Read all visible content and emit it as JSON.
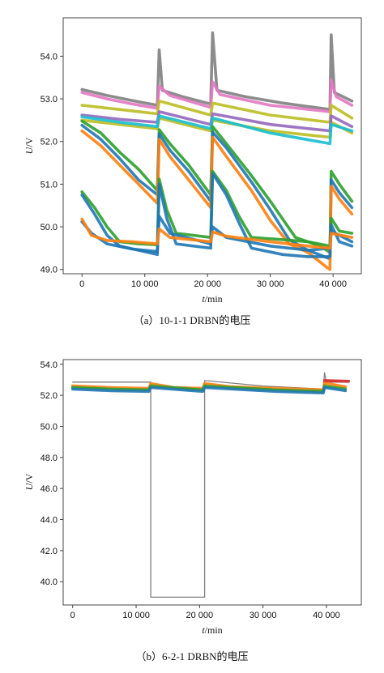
{
  "chart_data": [
    {
      "type": "line",
      "caption": "（a）10-1-1 DRBN的电压",
      "xlabel_italic": "t",
      "xlabel_unit": "/min",
      "ylabel_italic": "U",
      "ylabel_unit": "/V",
      "xlim": [
        -3000,
        44500
      ],
      "ylim": [
        48.9,
        54.9
      ],
      "xticks": [
        0,
        10000,
        20000,
        30000,
        40000
      ],
      "xtick_labels": [
        "0",
        "10 000",
        "20 000",
        "30 000",
        "40 000"
      ],
      "yticks": [
        49.0,
        50.0,
        51.0,
        52.0,
        53.0,
        54.0
      ],
      "ytick_labels": [
        "49.0",
        "50.0",
        "51.0",
        "52.0",
        "53.0",
        "54.0"
      ],
      "grid": false,
      "legend": "none",
      "series": [
        {
          "color": "#7f7f7f",
          "values": [
            [
              0,
              53.22
            ],
            [
              4000,
              53.08
            ],
            [
              8000,
              52.96
            ],
            [
              12000,
              52.85
            ],
            [
              12300,
              54.15
            ],
            [
              12800,
              53.2
            ],
            [
              16000,
              53.05
            ],
            [
              20500,
              52.88
            ],
            [
              20800,
              54.55
            ],
            [
              21500,
              53.2
            ],
            [
              26000,
              53.05
            ],
            [
              32000,
              52.9
            ],
            [
              39500,
              52.75
            ],
            [
              39700,
              54.5
            ],
            [
              40200,
              53.15
            ],
            [
              43000,
              52.95
            ]
          ]
        },
        {
          "color": "#e377c2",
          "values": [
            [
              0,
              53.15
            ],
            [
              4000,
              53.0
            ],
            [
              8000,
              52.88
            ],
            [
              12000,
              52.78
            ],
            [
              12300,
              53.3
            ],
            [
              14000,
              53.08
            ],
            [
              20500,
              52.8
            ],
            [
              20800,
              53.4
            ],
            [
              22000,
              53.1
            ],
            [
              30000,
              52.85
            ],
            [
              39500,
              52.7
            ],
            [
              39700,
              53.45
            ],
            [
              40500,
              53.05
            ],
            [
              43000,
              52.85
            ]
          ]
        },
        {
          "color": "#bcbd22",
          "values": [
            [
              0,
              52.85
            ],
            [
              6000,
              52.75
            ],
            [
              12000,
              52.65
            ],
            [
              12300,
              52.95
            ],
            [
              20500,
              52.62
            ],
            [
              20800,
              52.9
            ],
            [
              30000,
              52.62
            ],
            [
              39500,
              52.45
            ],
            [
              39700,
              52.85
            ],
            [
              43000,
              52.55
            ]
          ]
        },
        {
          "color": "#bcbd22",
          "values": [
            [
              0,
              52.5
            ],
            [
              6000,
              52.4
            ],
            [
              12000,
              52.3
            ],
            [
              12300,
              52.55
            ],
            [
              20500,
              52.25
            ],
            [
              20800,
              52.5
            ],
            [
              30000,
              52.25
            ],
            [
              39500,
              52.1
            ],
            [
              39700,
              52.45
            ],
            [
              43000,
              52.2
            ]
          ]
        },
        {
          "color": "#9467bd",
          "values": [
            [
              0,
              52.62
            ],
            [
              6000,
              52.52
            ],
            [
              12000,
              52.45
            ],
            [
              12300,
              52.7
            ],
            [
              20500,
              52.4
            ],
            [
              20800,
              52.65
            ],
            [
              30000,
              52.4
            ],
            [
              39500,
              52.25
            ],
            [
              39700,
              52.6
            ],
            [
              43000,
              52.35
            ]
          ]
        },
        {
          "color": "#17becf",
          "values": [
            [
              0,
              52.58
            ],
            [
              6000,
              52.45
            ],
            [
              12000,
              52.35
            ],
            [
              12300,
              52.6
            ],
            [
              20500,
              52.3
            ],
            [
              20800,
              52.55
            ],
            [
              30000,
              52.2
            ],
            [
              39500,
              51.95
            ],
            [
              39700,
              52.4
            ],
            [
              43000,
              52.25
            ]
          ]
        },
        {
          "color": "#2ca02c",
          "values": [
            [
              0,
              52.48
            ],
            [
              3000,
              52.2
            ],
            [
              6000,
              51.75
            ],
            [
              9000,
              51.35
            ],
            [
              12000,
              50.85
            ],
            [
              12300,
              52.28
            ],
            [
              14000,
              51.95
            ],
            [
              17000,
              51.45
            ],
            [
              20500,
              50.75
            ],
            [
              20800,
              52.35
            ],
            [
              23000,
              51.95
            ],
            [
              27000,
              51.2
            ],
            [
              30000,
              50.6
            ],
            [
              34000,
              49.75
            ],
            [
              38000,
              49.55
            ],
            [
              39500,
              49.4
            ],
            [
              39700,
              51.3
            ],
            [
              41000,
              51.0
            ],
            [
              43000,
              50.6
            ]
          ]
        },
        {
          "color": "#1f77b4",
          "values": [
            [
              0,
              52.38
            ],
            [
              3000,
              52.05
            ],
            [
              6000,
              51.6
            ],
            [
              9000,
              51.1
            ],
            [
              12000,
              50.75
            ],
            [
              12300,
              52.18
            ],
            [
              14000,
              51.8
            ],
            [
              17000,
              51.3
            ],
            [
              20500,
              50.6
            ],
            [
              20800,
              52.22
            ],
            [
              23000,
              51.85
            ],
            [
              27000,
              51.05
            ],
            [
              30000,
              50.4
            ],
            [
              33000,
              49.7
            ],
            [
              36000,
              49.45
            ],
            [
              39500,
              49.25
            ],
            [
              39700,
              51.1
            ],
            [
              41000,
              50.8
            ],
            [
              43000,
              50.45
            ]
          ]
        },
        {
          "color": "#ff7f0e",
          "values": [
            [
              0,
              52.25
            ],
            [
              3000,
              51.9
            ],
            [
              6000,
              51.45
            ],
            [
              9000,
              51.0
            ],
            [
              12000,
              50.55
            ],
            [
              12300,
              52.05
            ],
            [
              14000,
              51.65
            ],
            [
              17000,
              51.1
            ],
            [
              20500,
              50.45
            ],
            [
              20800,
              52.1
            ],
            [
              23000,
              51.65
            ],
            [
              27000,
              50.85
            ],
            [
              30000,
              50.15
            ],
            [
              33000,
              49.6
            ],
            [
              36000,
              49.4
            ],
            [
              39000,
              49.05
            ],
            [
              39500,
              49.0
            ],
            [
              39700,
              50.95
            ],
            [
              41000,
              50.65
            ],
            [
              43000,
              50.3
            ]
          ]
        },
        {
          "color": "#2ca02c",
          "values": [
            [
              0,
              50.82
            ],
            [
              2000,
              50.45
            ],
            [
              4000,
              50.0
            ],
            [
              6000,
              49.65
            ],
            [
              9000,
              49.6
            ],
            [
              12000,
              49.58
            ],
            [
              12300,
              51.12
            ],
            [
              13500,
              50.4
            ],
            [
              15000,
              49.85
            ],
            [
              20500,
              49.75
            ],
            [
              20800,
              51.3
            ],
            [
              23000,
              50.85
            ],
            [
              25000,
              50.25
            ],
            [
              27000,
              49.75
            ],
            [
              32000,
              49.7
            ],
            [
              36000,
              49.65
            ],
            [
              39500,
              49.55
            ],
            [
              39700,
              50.2
            ],
            [
              41000,
              49.9
            ],
            [
              43000,
              49.85
            ]
          ]
        },
        {
          "color": "#1f77b4",
          "values": [
            [
              0,
              50.75
            ],
            [
              2000,
              50.3
            ],
            [
              4000,
              49.8
            ],
            [
              6000,
              49.55
            ],
            [
              9000,
              49.45
            ],
            [
              12000,
              49.35
            ],
            [
              12300,
              51.0
            ],
            [
              13500,
              50.2
            ],
            [
              15000,
              49.6
            ],
            [
              20500,
              49.5
            ],
            [
              20800,
              51.25
            ],
            [
              23000,
              50.75
            ],
            [
              25000,
              50.1
            ],
            [
              27000,
              49.5
            ],
            [
              32000,
              49.35
            ],
            [
              36000,
              49.3
            ],
            [
              39500,
              49.3
            ],
            [
              39700,
              50.05
            ],
            [
              41000,
              49.65
            ],
            [
              43000,
              49.55
            ]
          ]
        },
        {
          "color": "#1f77b4",
          "values": [
            [
              0,
              50.12
            ],
            [
              1500,
              49.85
            ],
            [
              4000,
              49.6
            ],
            [
              8000,
              49.48
            ],
            [
              12000,
              49.42
            ],
            [
              12300,
              50.25
            ],
            [
              14000,
              49.85
            ],
            [
              20500,
              49.6
            ],
            [
              20800,
              50.0
            ],
            [
              23000,
              49.75
            ],
            [
              30000,
              49.55
            ],
            [
              36000,
              49.45
            ],
            [
              39500,
              49.5
            ],
            [
              39700,
              49.9
            ],
            [
              43000,
              49.65
            ]
          ]
        },
        {
          "color": "#ff7f0e",
          "values": [
            [
              0,
              50.18
            ],
            [
              1500,
              49.8
            ],
            [
              4000,
              49.68
            ],
            [
              8000,
              49.65
            ],
            [
              12000,
              49.6
            ],
            [
              12300,
              49.95
            ],
            [
              14000,
              49.75
            ],
            [
              20500,
              49.65
            ],
            [
              20800,
              49.88
            ],
            [
              23000,
              49.78
            ],
            [
              30000,
              49.65
            ],
            [
              36000,
              49.55
            ],
            [
              39500,
              49.5
            ],
            [
              39700,
              49.85
            ],
            [
              43000,
              49.75
            ]
          ]
        }
      ]
    },
    {
      "type": "line",
      "caption": "（b）6-2-1 DRBN的电压",
      "xlabel_italic": "t",
      "xlabel_unit": "/min",
      "ylabel_italic": "U",
      "ylabel_unit": "/V",
      "xlim": [
        -1500,
        45500
      ],
      "ylim": [
        38.5,
        54.3
      ],
      "xticks": [
        0,
        10000,
        20000,
        30000,
        40000
      ],
      "xtick_labels": [
        "0",
        "10 000",
        "20 000",
        "30 000",
        "40 000"
      ],
      "yticks": [
        40.0,
        42.0,
        44.0,
        46.0,
        48.0,
        50.0,
        52.0,
        54.0
      ],
      "ytick_labels": [
        "40.0",
        "42.0",
        "44.0",
        "46.0",
        "48.0",
        "50.0",
        "52.0",
        "54.0"
      ],
      "grid": false,
      "legend": "none",
      "series": [
        {
          "color": "#7f7f7f",
          "values": [
            [
              0,
              52.85
            ],
            [
              12300,
              52.85
            ],
            [
              12300,
              39.0
            ],
            [
              20800,
              39.0
            ],
            [
              20800,
              52.95
            ],
            [
              30000,
              52.6
            ],
            [
              39500,
              52.4
            ],
            [
              39700,
              53.45
            ],
            [
              40000,
              52.85
            ],
            [
              43500,
              52.85
            ]
          ]
        },
        {
          "color": "#ff7f0e",
          "values": [
            [
              0,
              52.6
            ],
            [
              6000,
              52.5
            ],
            [
              12000,
              52.45
            ],
            [
              12300,
              52.75
            ],
            [
              16000,
              52.5
            ],
            [
              20500,
              52.45
            ],
            [
              20800,
              52.75
            ],
            [
              25000,
              52.55
            ],
            [
              32000,
              52.45
            ],
            [
              39500,
              52.35
            ],
            [
              39700,
              52.8
            ],
            [
              43000,
              52.55
            ]
          ]
        },
        {
          "color": "#2ca02c",
          "values": [
            [
              0,
              52.5
            ],
            [
              6000,
              52.4
            ],
            [
              12000,
              52.35
            ],
            [
              12300,
              52.6
            ],
            [
              20500,
              52.35
            ],
            [
              20800,
              52.6
            ],
            [
              32000,
              52.35
            ],
            [
              39500,
              52.25
            ],
            [
              39700,
              52.6
            ],
            [
              43000,
              52.4
            ]
          ]
        },
        {
          "color": "#1f77b4",
          "values": [
            [
              0,
              52.4
            ],
            [
              6000,
              52.3
            ],
            [
              12000,
              52.25
            ],
            [
              12300,
              52.5
            ],
            [
              20500,
              52.25
            ],
            [
              20800,
              52.5
            ],
            [
              32000,
              52.25
            ],
            [
              39500,
              52.15
            ],
            [
              39700,
              52.5
            ],
            [
              43000,
              52.3
            ]
          ]
        },
        {
          "color": "#d62728",
          "values": [
            [
              39700,
              52.95
            ],
            [
              43500,
              52.9
            ]
          ]
        }
      ]
    }
  ]
}
